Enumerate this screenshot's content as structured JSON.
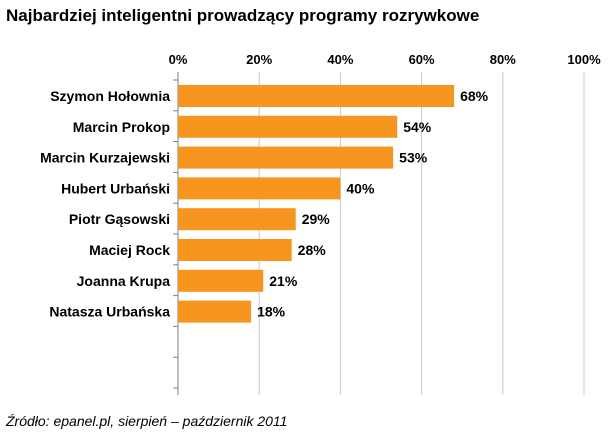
{
  "chart_data": {
    "type": "bar",
    "orientation": "horizontal",
    "title": "Najbardziej inteligentni prowadzący programy rozrywkowe",
    "categories": [
      "Szymon Hołownia",
      "Marcin Prokop",
      "Marcin Kurzajewski",
      "Hubert Urbański",
      "Piotr Gąsowski",
      "Maciej Rock",
      "Joanna Krupa",
      "Natasza Urbańska"
    ],
    "values": [
      68,
      54,
      53,
      40,
      29,
      28,
      21,
      18
    ],
    "data_labels": [
      "68%",
      "54%",
      "53%",
      "40%",
      "29%",
      "28%",
      "21%",
      "18%"
    ],
    "xlim": [
      0,
      100
    ],
    "x_ticks": [
      "0%",
      "20%",
      "40%",
      "60%",
      "80%",
      "100%"
    ],
    "x_axis_position": "top",
    "grid": true,
    "legend": "none",
    "bar_color": "#F7961E",
    "source": "Źródło: epanel.pl, sierpień – październik 2011"
  }
}
